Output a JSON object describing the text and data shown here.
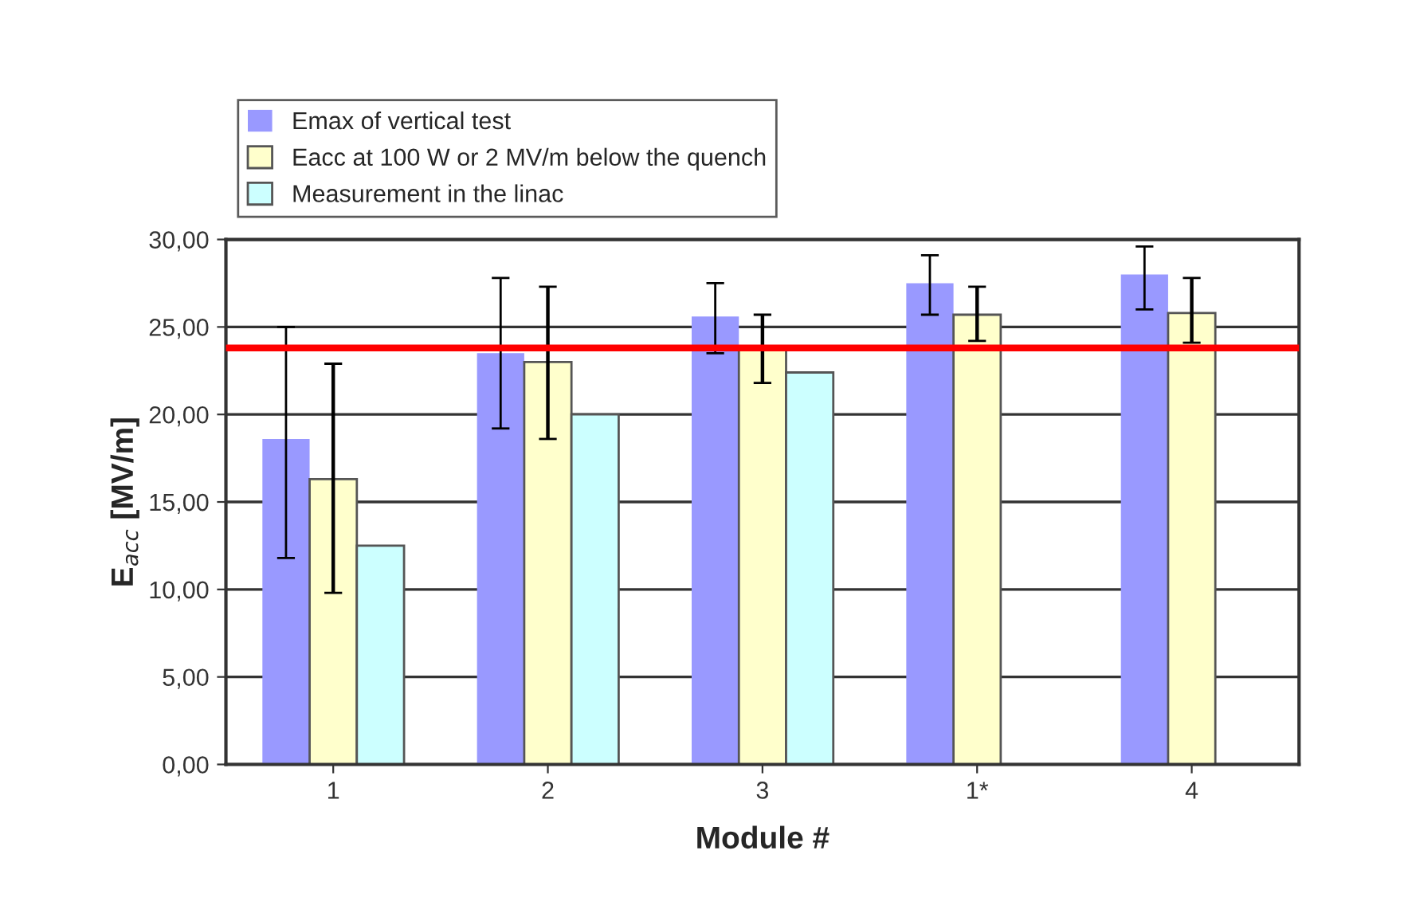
{
  "chart_data": {
    "type": "bar",
    "xlabel": "Module #",
    "ylabel": "E$_{acc}$ [MV/m]",
    "categories": [
      "1",
      "2",
      "3",
      "1*",
      "4"
    ],
    "series": [
      {
        "name": "Emax of vertical test",
        "color": "#9999ff",
        "values": [
          18.6,
          23.5,
          25.6,
          27.5,
          28.0
        ],
        "errors": [
          [
            11.8,
            25.0
          ],
          [
            19.2,
            27.8
          ],
          [
            23.5,
            27.5
          ],
          [
            25.7,
            29.1
          ],
          [
            26.0,
            29.6
          ]
        ]
      },
      {
        "name": "Eacc at 100 W or 2 MV/m below the quench",
        "color": "#ffffcc",
        "values": [
          16.3,
          23.0,
          23.8,
          25.7,
          25.8
        ],
        "errors": [
          [
            9.8,
            22.9
          ],
          [
            18.6,
            27.3
          ],
          [
            21.8,
            25.7
          ],
          [
            24.2,
            27.3
          ],
          [
            24.1,
            27.8
          ]
        ]
      },
      {
        "name": "Measurement in the linac",
        "color": "#ccffff",
        "values": [
          12.5,
          20.0,
          22.4,
          null,
          null
        ]
      }
    ],
    "ylim": [
      0,
      30
    ],
    "yticks": [
      {
        "value": 0,
        "label": "0,00"
      },
      {
        "value": 5,
        "label": "5,00"
      },
      {
        "value": 10,
        "label": "10,00"
      },
      {
        "value": 15,
        "label": "15,00"
      },
      {
        "value": 20,
        "label": "20,00"
      },
      {
        "value": 25,
        "label": "25,00"
      },
      {
        "value": 30,
        "label": "30,00"
      }
    ],
    "ref_lines": [
      {
        "axis": "y",
        "value": 23.8,
        "color": "#ff0000"
      }
    ],
    "grid": "y",
    "legend": "top"
  }
}
